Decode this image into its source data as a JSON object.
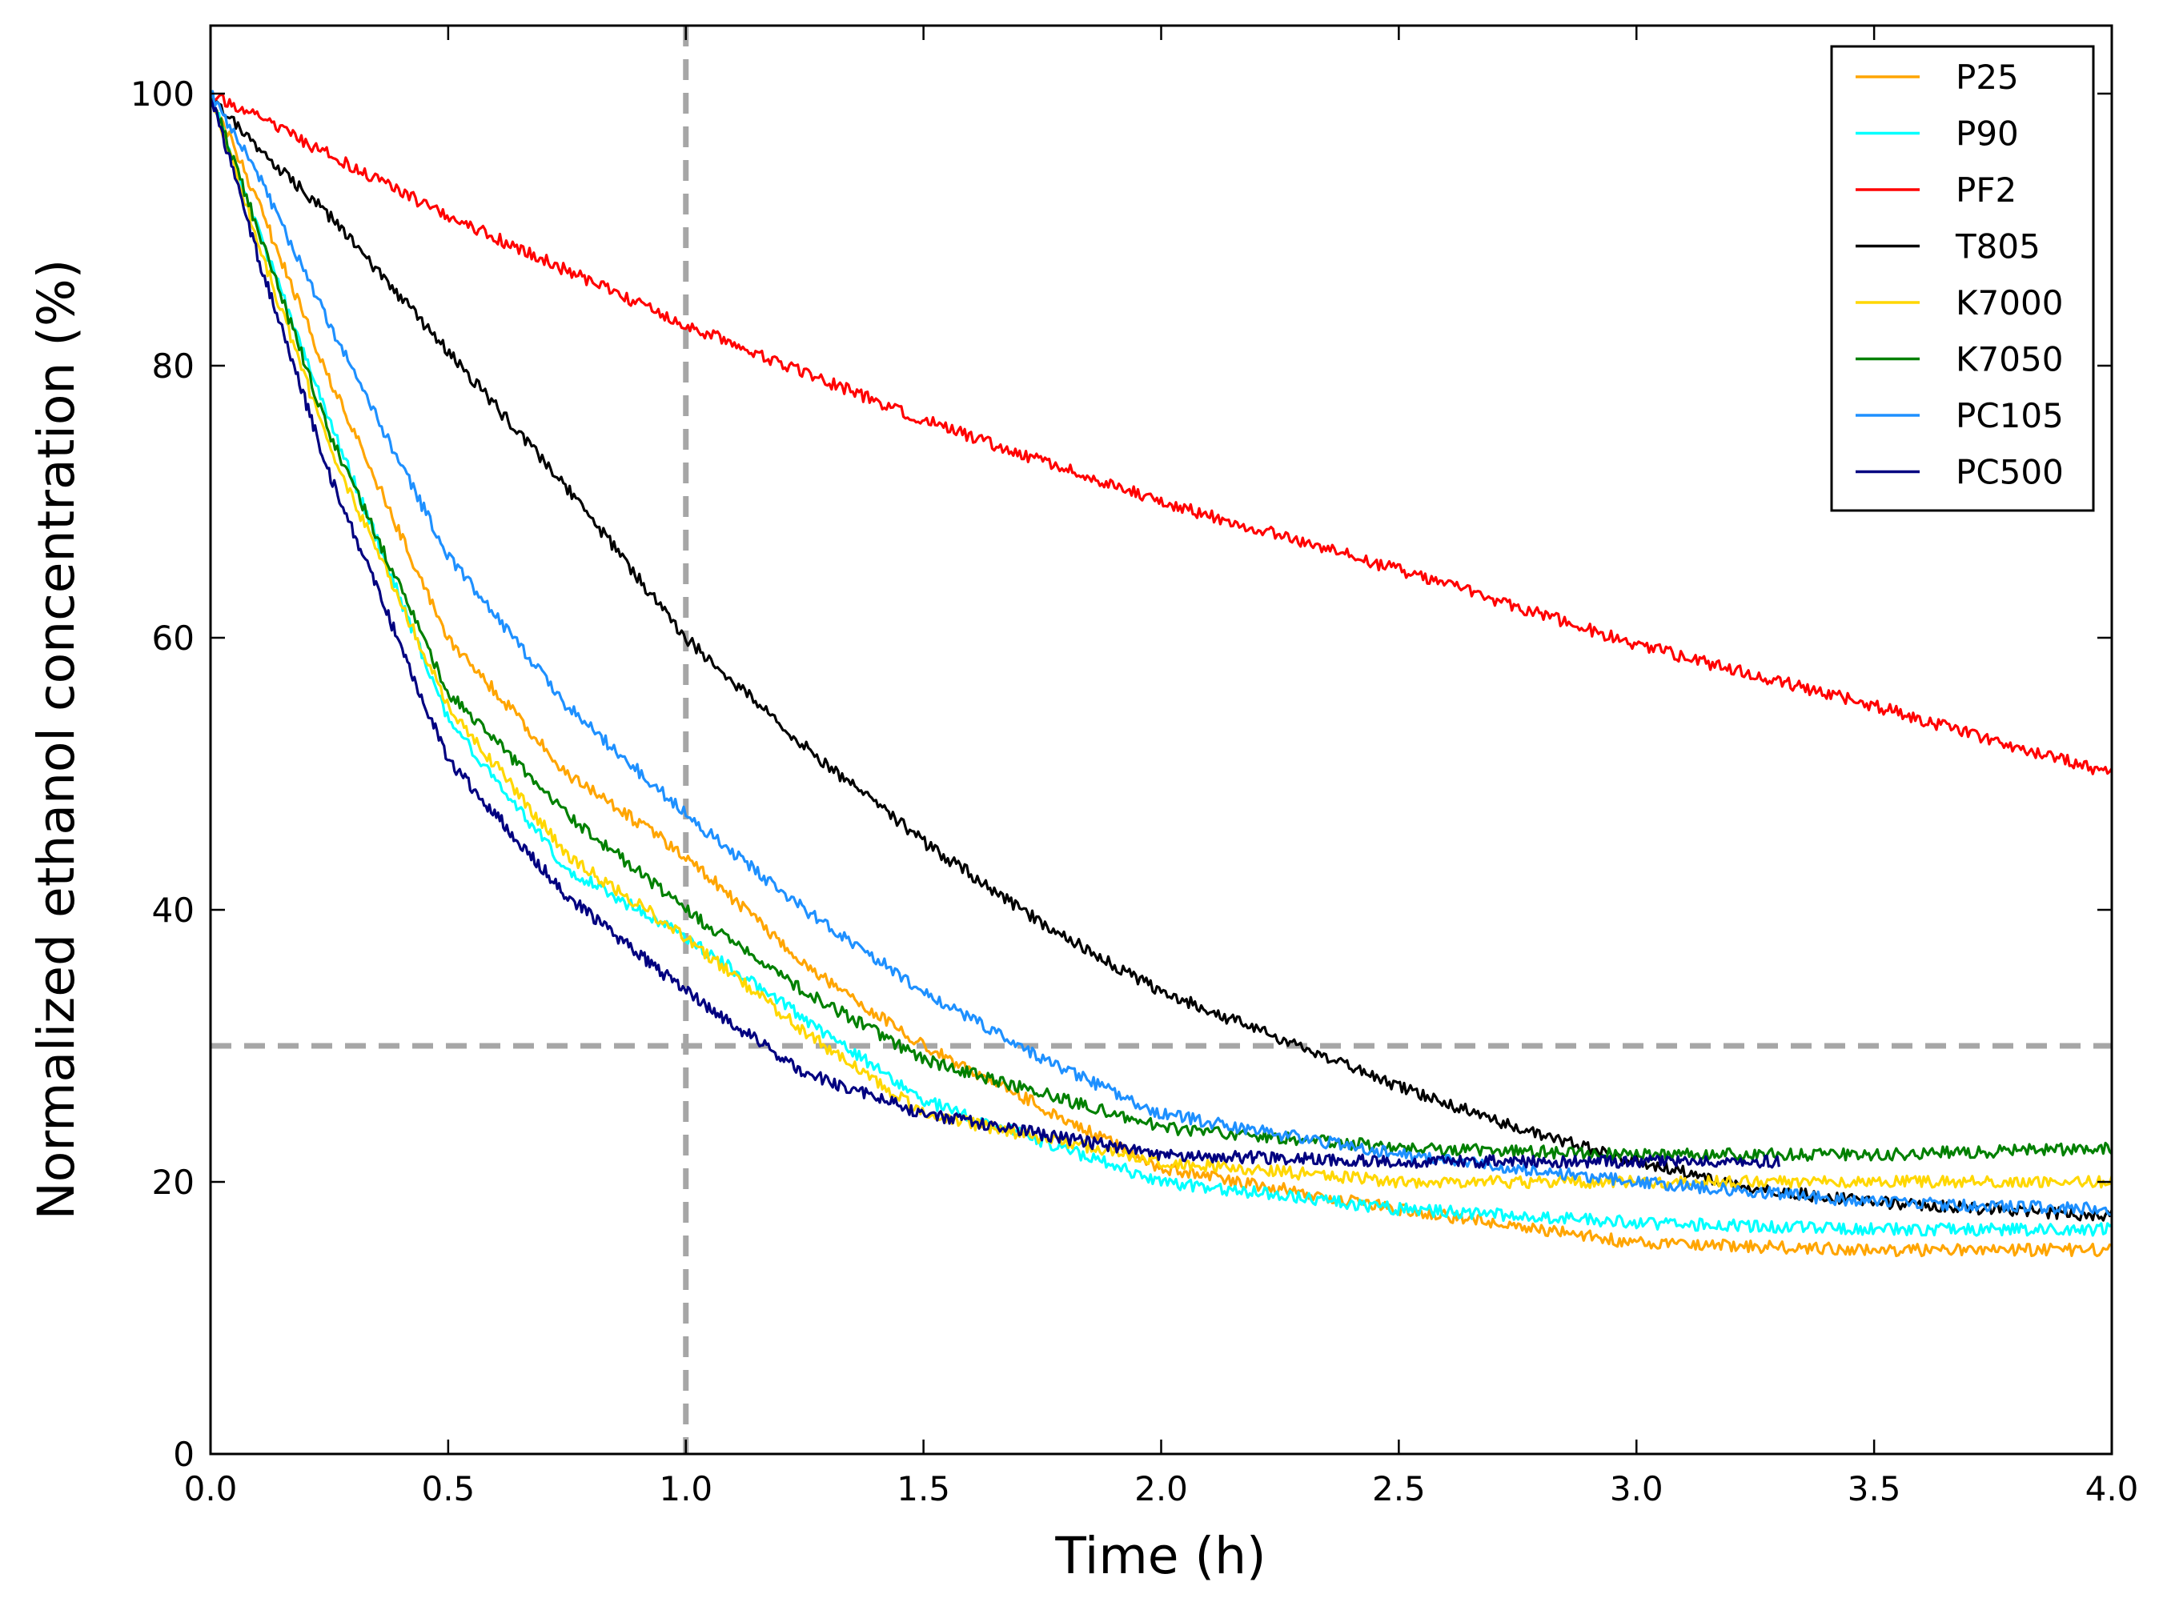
{
  "chart_data": {
    "type": "line",
    "title": "",
    "xlabel": "Time (h)",
    "ylabel": "Normalized ethanol concentration (%)",
    "xlim": [
      0,
      4
    ],
    "ylim": [
      0,
      105
    ],
    "xticks": [
      0.0,
      0.5,
      1.0,
      1.5,
      2.0,
      2.5,
      3.0,
      3.5,
      4.0
    ],
    "xtick_labels": [
      "0.0",
      "0.5",
      "1.0",
      "1.5",
      "2.0",
      "2.5",
      "3.0",
      "3.5",
      "4.0"
    ],
    "yticks": [
      0,
      20,
      40,
      60,
      80,
      100
    ],
    "ytick_labels": [
      "0",
      "20",
      "40",
      "60",
      "80",
      "100"
    ],
    "grid": false,
    "legend_position": "top-right",
    "reference_lines": [
      {
        "orientation": "vertical",
        "value": 1.0,
        "style": "dashed",
        "color": "#a6a6a6"
      },
      {
        "orientation": "horizontal",
        "value": 30,
        "style": "dashed",
        "color": "#a6a6a6"
      }
    ],
    "series": [
      {
        "name": "P25",
        "color": "#ffa500",
        "x": [
          0,
          0.1,
          0.25,
          0.5,
          0.75,
          1.0,
          1.25,
          1.5,
          2.0,
          2.5,
          3.0,
          3.5,
          4.0
        ],
        "y": [
          100,
          92,
          79,
          60,
          50,
          44,
          36,
          30,
          21,
          18,
          15.5,
          15,
          15
        ]
      },
      {
        "name": "P90",
        "color": "#00ffff",
        "x": [
          0,
          0.1,
          0.25,
          0.5,
          0.75,
          1.0,
          1.25,
          1.5,
          2.0,
          2.5,
          3.0,
          3.5,
          4.0
        ],
        "y": [
          100,
          90,
          76,
          54,
          43,
          38,
          32,
          26,
          20,
          18,
          17,
          16.5,
          16.5
        ]
      },
      {
        "name": "PF2",
        "color": "#ff0000",
        "x": [
          0,
          0.5,
          1.0,
          1.5,
          2.0,
          2.5,
          3.0,
          3.5,
          4.0
        ],
        "y": [
          100,
          91,
          83,
          76,
          70,
          65,
          59.5,
          55,
          50
        ]
      },
      {
        "name": "T805",
        "color": "#000000",
        "x": [
          0,
          0.1,
          0.25,
          0.5,
          0.75,
          1.0,
          1.25,
          1.5,
          1.75,
          2.0,
          2.25,
          2.5,
          2.75,
          3.0,
          3.25,
          3.5,
          4.0
        ],
        "y": [
          100,
          96,
          91,
          81,
          71,
          60,
          52,
          45,
          39,
          34,
          30.5,
          27,
          24,
          21.5,
          19.5,
          18.5,
          17.5
        ]
      },
      {
        "name": "K7000",
        "color": "#ffd700",
        "x": [
          0,
          0.1,
          0.25,
          0.5,
          0.75,
          1.0,
          1.25,
          1.5,
          2.0,
          2.5,
          3.0,
          3.5,
          4.0
        ],
        "y": [
          100,
          89,
          74,
          55,
          44,
          38,
          31,
          25,
          21.5,
          20,
          20,
          20,
          20
        ]
      },
      {
        "name": "K7050",
        "color": "#008000",
        "x": [
          0,
          0.1,
          0.25,
          0.5,
          0.75,
          1.0,
          1.25,
          1.5,
          2.0,
          2.5,
          3.0,
          3.5,
          4.0
        ],
        "y": [
          100,
          90,
          75,
          56,
          47,
          40,
          34,
          29,
          24,
          22.5,
          22,
          22,
          22.5
        ]
      },
      {
        "name": "PC105",
        "color": "#1e90ff",
        "x": [
          0,
          0.1,
          0.25,
          0.5,
          0.75,
          1.0,
          1.25,
          1.5,
          1.75,
          2.0,
          2.5,
          3.0,
          3.5,
          4.0
        ],
        "y": [
          100,
          94,
          83,
          66,
          55,
          47,
          40,
          34,
          29,
          25,
          22,
          20,
          18.5,
          18
        ]
      },
      {
        "name": "PC500",
        "color": "#000080",
        "x": [
          0,
          0.1,
          0.25,
          0.5,
          0.75,
          1.0,
          1.25,
          1.5,
          2.0,
          2.5,
          3.0,
          3.3
        ],
        "y": [
          100,
          88,
          72,
          51,
          41,
          34,
          28,
          25,
          22,
          21.5,
          21.5,
          21.5
        ]
      }
    ]
  }
}
